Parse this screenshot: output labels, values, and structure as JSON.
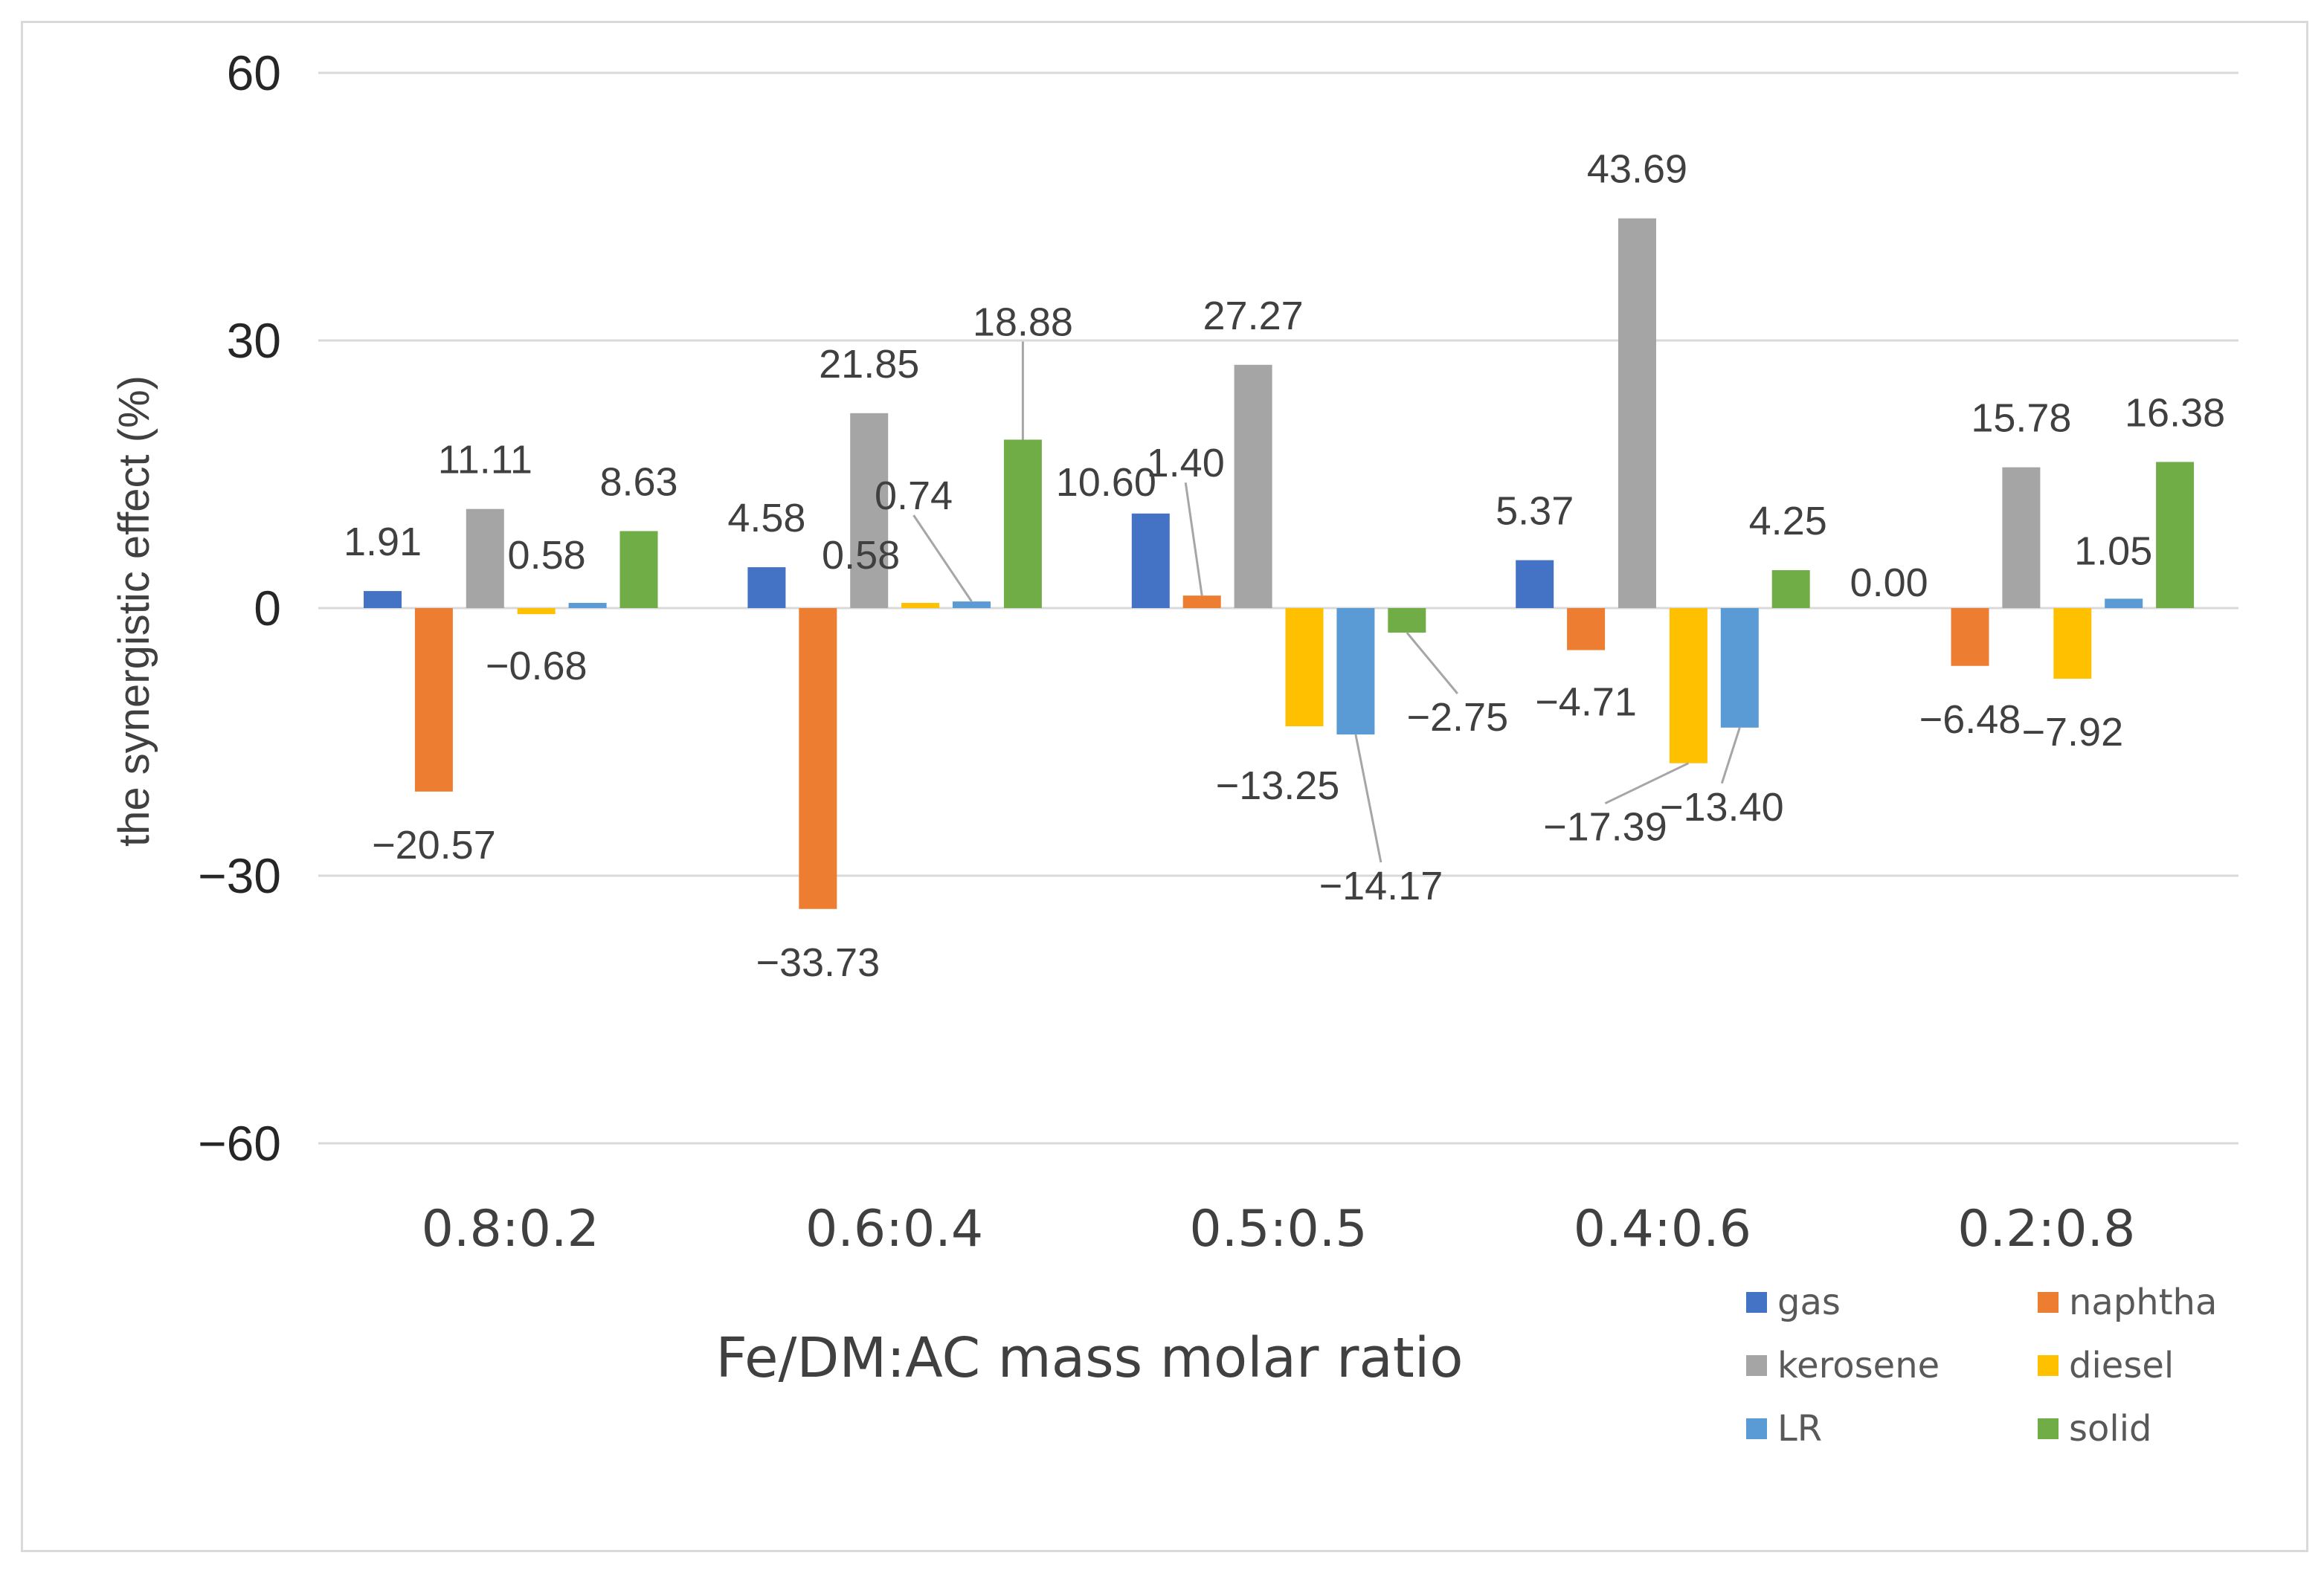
{
  "chart_data": {
    "type": "bar",
    "xlabel": "Fe/DM:AC mass molar ratio",
    "ylabel": "the synergistic effect (%)",
    "ylim": [
      -60,
      60
    ],
    "yticks": [
      60,
      30,
      0,
      -30,
      -60
    ],
    "ytick_labels": [
      "60",
      "30",
      "0",
      "−30",
      "−60"
    ],
    "grid": true,
    "legend_position": "bottom-right",
    "categories": [
      "0.8:0.2",
      "0.6:0.4",
      "0.5:0.5",
      "0.4:0.6",
      "0.2:0.8"
    ],
    "series": [
      {
        "name": "gas",
        "color": "#4472C4",
        "values": [
          1.91,
          4.58,
          10.6,
          5.37,
          0.0
        ],
        "labels": [
          "1.91",
          "4.58",
          "10.60",
          "5.37",
          "0.00"
        ]
      },
      {
        "name": "naphtha",
        "color": "#ED7D31",
        "values": [
          -20.57,
          -33.73,
          1.4,
          -4.71,
          -6.48
        ],
        "labels": [
          "−20.57",
          "−33.73",
          "1.40",
          "−4.71",
          "−6.48"
        ]
      },
      {
        "name": "kerosene",
        "color": "#A5A5A5",
        "values": [
          11.11,
          21.85,
          27.27,
          43.69,
          15.78
        ],
        "labels": [
          "11.11",
          "21.85",
          "27.27",
          "43.69",
          "15.78"
        ]
      },
      {
        "name": "diesel",
        "color": "#FFC000",
        "values": [
          -0.68,
          0.58,
          -13.25,
          -17.39,
          -7.92
        ],
        "labels": [
          "−0.68",
          "0.58",
          "−13.25",
          "−17.39",
          "−7.92"
        ]
      },
      {
        "name": "LR",
        "color": "#5B9BD5",
        "values": [
          0.58,
          0.74,
          -14.17,
          -13.4,
          1.05
        ],
        "labels": [
          "0.58",
          "0.74",
          "−14.17",
          "−13.40",
          "1.05"
        ]
      },
      {
        "name": "solid",
        "color": "#70AD47",
        "values": [
          8.63,
          18.88,
          -2.75,
          4.25,
          16.38
        ],
        "labels": [
          "8.63",
          "18.88",
          "−2.75",
          "4.25",
          "16.38"
        ]
      }
    ]
  }
}
